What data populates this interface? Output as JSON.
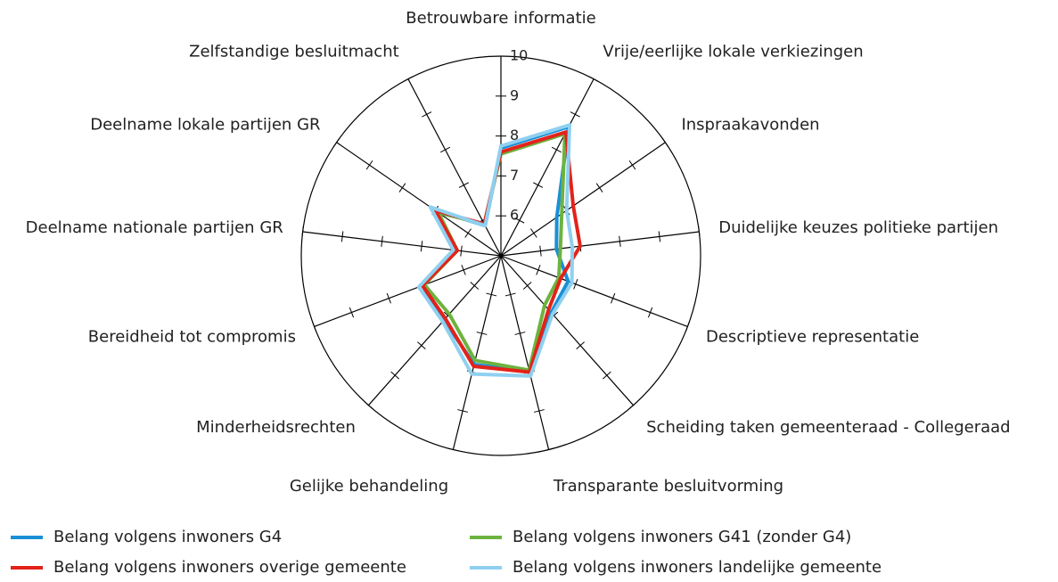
{
  "chart_data": {
    "type": "radar",
    "categories": [
      "Betrouwbare informatie",
      "Vrije/eerlijke lokale verkiezingen",
      "Inspraakavonden",
      "Duidelijke keuzes politieke partijen",
      "Descriptieve representatie",
      "Scheiding taken gemeenteraad - Collegeraad",
      "Transparante besluitvorming",
      "Gelijke behandeling",
      "Minderheidsrechten",
      "Bereidheid tot compromis",
      "Deelname nationale partijen GR",
      "Deelname lokale partijen GR",
      "Zelfstandige besluitmacht"
    ],
    "rlim": [
      5,
      10
    ],
    "rticks": [
      6,
      7,
      8,
      9,
      10
    ],
    "series": [
      {
        "name": "Belang volgens inwoners G4",
        "color": "#1a8fd6",
        "values": [
          7.7,
          8.65,
          6.7,
          6.4,
          6.8,
          6.9,
          8.0,
          7.8,
          7.15,
          7.1,
          6.15,
          7.05,
          5.85
        ]
      },
      {
        "name": "Belang volgens inwoners G41 (zonder G4)",
        "color": "#6db33f",
        "values": [
          7.55,
          8.45,
          6.85,
          6.5,
          6.55,
          6.65,
          7.95,
          7.7,
          6.95,
          7.05,
          6.1,
          6.9,
          5.9
        ]
      },
      {
        "name": "Belang volgens inwoners overige gemeente",
        "color": "#e2231a",
        "values": [
          7.6,
          8.5,
          7.2,
          7.0,
          6.6,
          6.8,
          8.0,
          7.85,
          7.1,
          7.1,
          6.1,
          7.0,
          5.9
        ]
      },
      {
        "name": "Belang volgens inwoners landelijke gemeente",
        "color": "#8fd0f0",
        "values": [
          7.75,
          8.7,
          7.0,
          6.8,
          6.9,
          6.95,
          8.1,
          8.05,
          7.2,
          7.2,
          6.2,
          7.15,
          5.85
        ]
      }
    ]
  }
}
